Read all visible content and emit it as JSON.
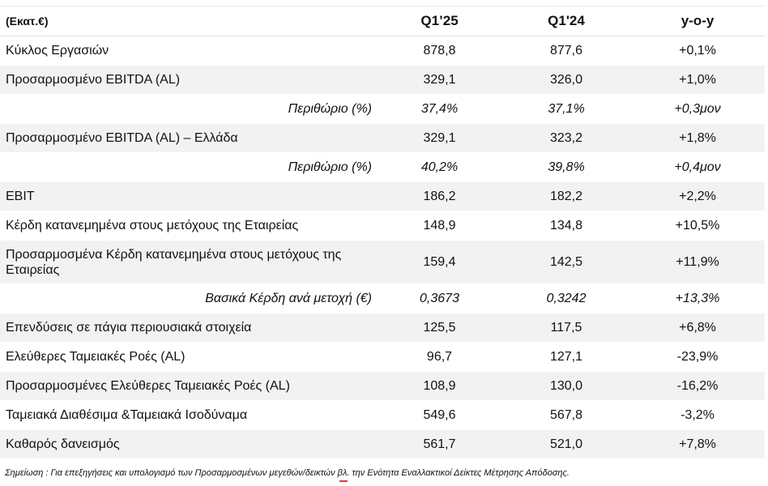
{
  "header": {
    "unit": "(Εκατ.€)",
    "col1": "Q1’25",
    "col2": "Q1'24",
    "col3": "y-o-y"
  },
  "rows": [
    {
      "label": "Κύκλος Εργασιών",
      "q125": "878,8",
      "q124": "877,6",
      "yoy": "+0,1%"
    },
    {
      "label": "Προσαρμοσμένο EBITDA (AL)",
      "q125": "329,1",
      "q124": "326,0",
      "yoy": "+1,0%"
    },
    {
      "label": "Περιθώριο (%)",
      "q125": "37,4%",
      "q124": "37,1%",
      "yoy": "+0,3μον"
    },
    {
      "label": "Προσαρμοσμένο EBITDA (AL) – Ελλάδα",
      "q125": "329,1",
      "q124": "323,2",
      "yoy": "+1,8%"
    },
    {
      "label": "Περιθώριο (%)",
      "q125": "40,2%",
      "q124": "39,8%",
      "yoy": "+0,4μον"
    },
    {
      "label": "EBIT",
      "q125": "186,2",
      "q124": "182,2",
      "yoy": "+2,2%"
    },
    {
      "label": "Κέρδη κατανεμημένα στους μετόχους της Εταιρείας",
      "q125": "148,9",
      "q124": "134,8",
      "yoy": "+10,5%"
    },
    {
      "label": "Προσαρμοσμένα Κέρδη κατανεμημένα στους μετόχους της Εταιρείας",
      "q125": "159,4",
      "q124": "142,5",
      "yoy": "+11,9%"
    },
    {
      "label": "Βασικά Κέρδη ανά μετοχή (€)",
      "q125": "0,3673",
      "q124": "0,3242",
      "yoy": "+13,3%"
    },
    {
      "label": "Επενδύσεις σε πάγια περιουσιακά στοιχεία",
      "q125": "125,5",
      "q124": "117,5",
      "yoy": "+6,8%"
    },
    {
      "label": "Ελεύθερες Ταμειακές Ροές (AL)",
      "q125": "96,7",
      "q124": "127,1",
      "yoy": "-23,9%"
    },
    {
      "label": "Προσαρμοσμένες Ελεύθερες Ταμειακές Ροές (AL)",
      "q125": "108,9",
      "q124": "130,0",
      "yoy": "-16,2%"
    },
    {
      "label": "Ταμειακά Διαθέσιμα &Ταμειακά Ισοδύναμα",
      "q125": "549,6",
      "q124": "567,8",
      "yoy": "-3,2%"
    },
    {
      "label": "Καθαρός δανεισμός",
      "q125": "561,7",
      "q124": "521,0",
      "yoy": "+7,8%"
    }
  ],
  "note": {
    "before": "Σημείωση : Για επεξηγήσεις και υπολογισμό των Προσαρμοσμένων μεγεθών/δεικτών ",
    "mark": "βλ.",
    "after": " την Ενότητα Εναλλακτικοί Δείκτες Μέτρησης Απόδοσης."
  }
}
